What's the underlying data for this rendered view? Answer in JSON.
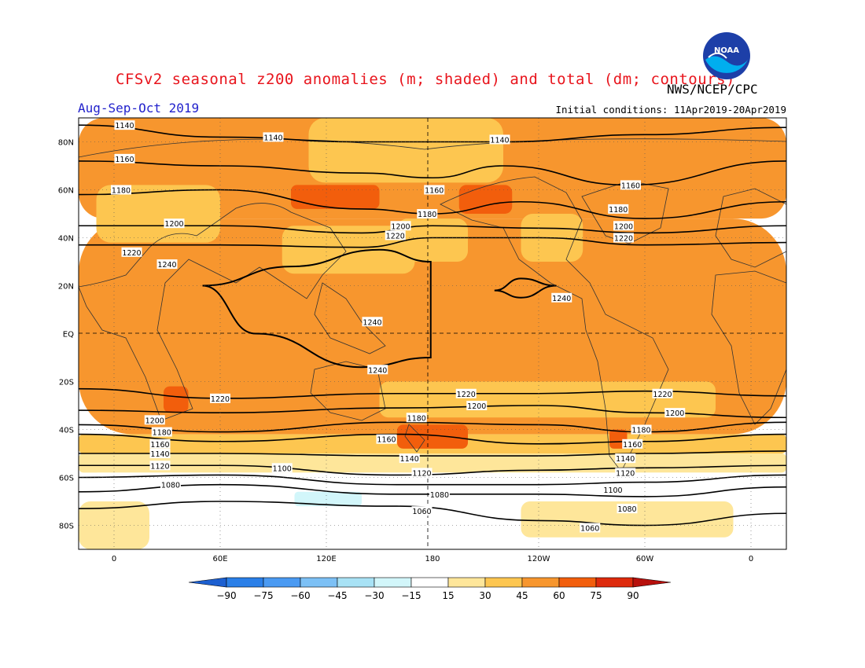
{
  "figure": {
    "title": "CFSv2 seasonal z200 anomalies (m; shaded) and total (dm; contours)",
    "agency": "NWS/NCEP/CPC",
    "season": "Aug-Sep-Oct 2019",
    "initial_conditions_label": "Initial conditions:",
    "initial_conditions_value": "11Apr2019-20Apr2019",
    "logo_text": "NOAA"
  },
  "map": {
    "projection": "cylindrical equidistant",
    "lon_range": [
      -20,
      380
    ],
    "lat_range": [
      -90,
      90
    ],
    "lat_ticks": [
      {
        "lat": 80,
        "label": "80N"
      },
      {
        "lat": 60,
        "label": "60N"
      },
      {
        "lat": 40,
        "label": "40N"
      },
      {
        "lat": 20,
        "label": "20N"
      },
      {
        "lat": 0,
        "label": "EQ"
      },
      {
        "lat": -20,
        "label": "20S"
      },
      {
        "lat": -40,
        "label": "40S"
      },
      {
        "lat": -60,
        "label": "60S"
      },
      {
        "lat": -80,
        "label": "80S"
      }
    ],
    "lon_ticks": [
      {
        "lon": 0,
        "label": "0"
      },
      {
        "lon": 60,
        "label": "60E"
      },
      {
        "lon": 120,
        "label": "120E"
      },
      {
        "lon": 180,
        "label": "180"
      },
      {
        "lon": 240,
        "label": "120W"
      },
      {
        "lon": 300,
        "label": "60W"
      },
      {
        "lon": 360,
        "label": "0"
      }
    ],
    "dashed_reference_lines": {
      "equator_lat": 0,
      "dateline_lon": 180
    },
    "shading_levels": [
      -90,
      -75,
      -60,
      -45,
      -30,
      -15,
      15,
      30,
      45,
      60,
      75,
      90
    ],
    "shading_colors": [
      "#1c5fd0",
      "#2a7fe8",
      "#4a9af2",
      "#7cc0f5",
      "#a8e2f5",
      "#d2f6fa",
      "#ffffff",
      "#fee69a",
      "#fdc650",
      "#f7962e",
      "#f25e0c",
      "#de2a0c",
      "#b7100c"
    ],
    "anomaly_regions": [
      {
        "region": "tropics and midlatitudes",
        "lat": [
          -42,
          48
        ],
        "lon": [
          -20,
          380
        ],
        "value": 50
      },
      {
        "region": "northern high latitudes",
        "lat": [
          48,
          90
        ],
        "lon": [
          -20,
          380
        ],
        "value": 50
      },
      {
        "region": "Arctic band",
        "lat": [
          63,
          90
        ],
        "lon": [
          110,
          220
        ],
        "value": 35
      },
      {
        "region": "NE Asia",
        "lat": [
          25,
          45
        ],
        "lon": [
          95,
          170
        ],
        "value": 35
      },
      {
        "region": "North Pacific",
        "lat": [
          30,
          48
        ],
        "lon": [
          160,
          200
        ],
        "value": 35
      },
      {
        "region": "western North America",
        "lat": [
          30,
          50
        ],
        "lon": [
          230,
          265
        ],
        "value": 35
      },
      {
        "region": "Europe",
        "lat": [
          38,
          62
        ],
        "lon": [
          -10,
          60
        ],
        "value": 35
      },
      {
        "region": "Southern subtropics",
        "lat": [
          -35,
          -20
        ],
        "lon": [
          150,
          340
        ],
        "value": 35
      },
      {
        "region": "Southern midlatitudes",
        "lat": [
          -50,
          -42
        ],
        "lon": [
          -20,
          380
        ],
        "value": 35
      },
      {
        "region": "Southern Ocean",
        "lat": [
          -58,
          -50
        ],
        "lon": [
          -20,
          380
        ],
        "value": 25
      },
      {
        "region": "Antarctic ring",
        "lat": [
          -90,
          -58
        ],
        "lon": [
          -20,
          380
        ],
        "value": 5
      },
      {
        "region": "Antarctic coast",
        "lat": [
          -85,
          -70
        ],
        "lon": [
          230,
          350
        ],
        "value": 25
      },
      {
        "region": "Indian Ocean sector",
        "lat": [
          -90,
          -70
        ],
        "lon": [
          -20,
          20
        ],
        "value": 25
      },
      {
        "region": "Ross Sea",
        "lat": [
          -72,
          -66
        ],
        "lon": [
          102,
          140
        ],
        "value": -20
      },
      {
        "region": "NE Asia maximum",
        "lat": [
          52,
          62
        ],
        "lon": [
          100,
          150
        ],
        "value": 65
      },
      {
        "region": "Bering maximum",
        "lat": [
          50,
          62
        ],
        "lon": [
          195,
          225
        ],
        "value": 65
      },
      {
        "region": "Southern Africa maximum",
        "lat": [
          -33,
          -22
        ],
        "lon": [
          28,
          42
        ],
        "value": 65
      },
      {
        "region": "New Zealand maximum",
        "lat": [
          -48,
          -38
        ],
        "lon": [
          160,
          200
        ],
        "value": 65
      },
      {
        "region": "South America maximum",
        "lat": [
          -48,
          -40
        ],
        "lon": [
          280,
          290
        ],
        "value": 65
      }
    ],
    "contours": [
      {
        "value": 1140,
        "label": "1140",
        "lat_profile": [
          [
            -20,
            87
          ],
          [
            60,
            82
          ],
          [
            140,
            80
          ],
          [
            220,
            80
          ],
          [
            300,
            83
          ],
          [
            380,
            86
          ]
        ]
      },
      {
        "value": 1160,
        "label": "1160",
        "lat_profile": [
          [
            -20,
            72
          ],
          [
            60,
            70
          ],
          [
            140,
            67
          ],
          [
            180,
            65
          ],
          [
            220,
            70
          ],
          [
            290,
            62
          ],
          [
            380,
            72
          ]
        ]
      },
      {
        "value": 1180,
        "label": "1180",
        "lat_profile": [
          [
            -20,
            58
          ],
          [
            60,
            60
          ],
          [
            140,
            52
          ],
          [
            180,
            50
          ],
          [
            230,
            55
          ],
          [
            300,
            48
          ],
          [
            380,
            55
          ]
        ]
      },
      {
        "value": 1200,
        "label": "1200",
        "lat_profile": [
          [
            -20,
            45
          ],
          [
            60,
            45
          ],
          [
            140,
            42
          ],
          [
            180,
            45
          ],
          [
            240,
            44
          ],
          [
            300,
            42
          ],
          [
            380,
            45
          ]
        ]
      },
      {
        "value": 1220,
        "label": "1220",
        "lat_profile": [
          [
            -20,
            37
          ],
          [
            60,
            37
          ],
          [
            140,
            36
          ],
          [
            180,
            40
          ],
          [
            240,
            40
          ],
          [
            300,
            37
          ],
          [
            380,
            38
          ]
        ]
      },
      {
        "value": 1240,
        "label": "1240",
        "lat_profile": [
          [
            50,
            20
          ],
          [
            100,
            28
          ],
          [
            150,
            35
          ],
          [
            179,
            30
          ],
          [
            179,
            -10
          ],
          [
            140,
            -14
          ],
          [
            80,
            0
          ],
          [
            50,
            20
          ]
        ]
      },
      {
        "value": 1240,
        "label": "1240",
        "lat_profile": [
          [
            215,
            18
          ],
          [
            230,
            23
          ],
          [
            250,
            20
          ],
          [
            230,
            15
          ],
          [
            215,
            18
          ]
        ]
      },
      {
        "value": 1220,
        "label": "1220",
        "lat_profile": [
          [
            -20,
            -23
          ],
          [
            60,
            -27
          ],
          [
            160,
            -25
          ],
          [
            240,
            -25
          ],
          [
            300,
            -24
          ],
          [
            380,
            -26
          ]
        ]
      },
      {
        "value": 1200,
        "label": "1200",
        "lat_profile": [
          [
            -20,
            -32
          ],
          [
            60,
            -33
          ],
          [
            160,
            -31
          ],
          [
            240,
            -30
          ],
          [
            300,
            -33
          ],
          [
            380,
            -35
          ]
        ]
      },
      {
        "value": 1180,
        "label": "1180",
        "lat_profile": [
          [
            -20,
            -38
          ],
          [
            60,
            -41
          ],
          [
            160,
            -37
          ],
          [
            240,
            -38
          ],
          [
            300,
            -41
          ],
          [
            380,
            -37
          ]
        ]
      },
      {
        "value": 1160,
        "label": "1160",
        "lat_profile": [
          [
            -20,
            -42
          ],
          [
            60,
            -45
          ],
          [
            160,
            -42
          ],
          [
            240,
            -46
          ],
          [
            300,
            -45
          ],
          [
            380,
            -42
          ]
        ]
      },
      {
        "value": 1140,
        "label": "1140",
        "lat_profile": [
          [
            -20,
            -50
          ],
          [
            60,
            -50
          ],
          [
            160,
            -51
          ],
          [
            240,
            -51
          ],
          [
            300,
            -50
          ],
          [
            380,
            -49
          ]
        ]
      },
      {
        "value": 1120,
        "label": "1120",
        "lat_profile": [
          [
            -20,
            -55
          ],
          [
            60,
            -55
          ],
          [
            160,
            -59
          ],
          [
            240,
            -57
          ],
          [
            300,
            -56
          ],
          [
            380,
            -55
          ]
        ]
      },
      {
        "value": 1100,
        "label": "1100",
        "lat_profile": [
          [
            -20,
            -60
          ],
          [
            60,
            -59
          ],
          [
            160,
            -63
          ],
          [
            240,
            -63
          ],
          [
            300,
            -62
          ],
          [
            380,
            -59
          ]
        ]
      },
      {
        "value": 1080,
        "label": "1080",
        "lat_profile": [
          [
            -20,
            -66
          ],
          [
            60,
            -63
          ],
          [
            160,
            -67
          ],
          [
            240,
            -67
          ],
          [
            300,
            -68
          ],
          [
            380,
            -64
          ]
        ]
      },
      {
        "value": 1060,
        "label": "1060",
        "lat_profile": [
          [
            -20,
            -73
          ],
          [
            60,
            -70
          ],
          [
            160,
            -72
          ],
          [
            240,
            -78
          ],
          [
            300,
            -80
          ],
          [
            380,
            -75
          ]
        ]
      }
    ],
    "contour_labels": [
      {
        "text": "1140",
        "lon": 6,
        "lat": 87
      },
      {
        "text": "1140",
        "lon": 90,
        "lat": 82
      },
      {
        "text": "1140",
        "lon": 218,
        "lat": 81
      },
      {
        "text": "1160",
        "lon": 6,
        "lat": 73
      },
      {
        "text": "1160",
        "lon": 181,
        "lat": 60
      },
      {
        "text": "1160",
        "lon": 292,
        "lat": 62
      },
      {
        "text": "1180",
        "lon": 4,
        "lat": 60
      },
      {
        "text": "1180",
        "lon": 177,
        "lat": 50
      },
      {
        "text": "1180",
        "lon": 285,
        "lat": 52
      },
      {
        "text": "1200",
        "lon": 34,
        "lat": 46
      },
      {
        "text": "1200",
        "lon": 162,
        "lat": 45
      },
      {
        "text": "1200",
        "lon": 288,
        "lat": 45
      },
      {
        "text": "1220",
        "lon": 10,
        "lat": 34
      },
      {
        "text": "1220",
        "lon": 159,
        "lat": 41
      },
      {
        "text": "1220",
        "lon": 288,
        "lat": 40
      },
      {
        "text": "1240",
        "lon": 30,
        "lat": 29
      },
      {
        "text": "1240",
        "lon": 146,
        "lat": 5
      },
      {
        "text": "1240",
        "lon": 149,
        "lat": -15
      },
      {
        "text": "1240",
        "lon": 253,
        "lat": 15
      },
      {
        "text": "1220",
        "lon": 60,
        "lat": -27
      },
      {
        "text": "1220",
        "lon": 199,
        "lat": -25
      },
      {
        "text": "1220",
        "lon": 310,
        "lat": -25
      },
      {
        "text": "1200",
        "lon": 205,
        "lat": -30
      },
      {
        "text": "1200",
        "lon": 317,
        "lat": -33
      },
      {
        "text": "1200",
        "lon": 23,
        "lat": -36
      },
      {
        "text": "1180",
        "lon": 171,
        "lat": -35
      },
      {
        "text": "1180",
        "lon": 298,
        "lat": -40
      },
      {
        "text": "1180",
        "lon": 27,
        "lat": -41
      },
      {
        "text": "1160",
        "lon": 154,
        "lat": -44
      },
      {
        "text": "1160",
        "lon": 293,
        "lat": -46
      },
      {
        "text": "1160",
        "lon": 26,
        "lat": -46
      },
      {
        "text": "1140",
        "lon": 26,
        "lat": -50
      },
      {
        "text": "1140",
        "lon": 167,
        "lat": -52
      },
      {
        "text": "1140",
        "lon": 289,
        "lat": -52
      },
      {
        "text": "1120",
        "lon": 26,
        "lat": -55
      },
      {
        "text": "1120",
        "lon": 174,
        "lat": -58
      },
      {
        "text": "1120",
        "lon": 289,
        "lat": -58
      },
      {
        "text": "1100",
        "lon": 95,
        "lat": -56
      },
      {
        "text": "1100",
        "lon": 282,
        "lat": -65
      },
      {
        "text": "1080",
        "lon": 32,
        "lat": -63
      },
      {
        "text": "1080",
        "lon": 184,
        "lat": -67
      },
      {
        "text": "1080",
        "lon": 290,
        "lat": -73
      },
      {
        "text": "1060",
        "lon": 174,
        "lat": -74
      },
      {
        "text": "1060",
        "lon": 269,
        "lat": -81
      }
    ]
  }
}
